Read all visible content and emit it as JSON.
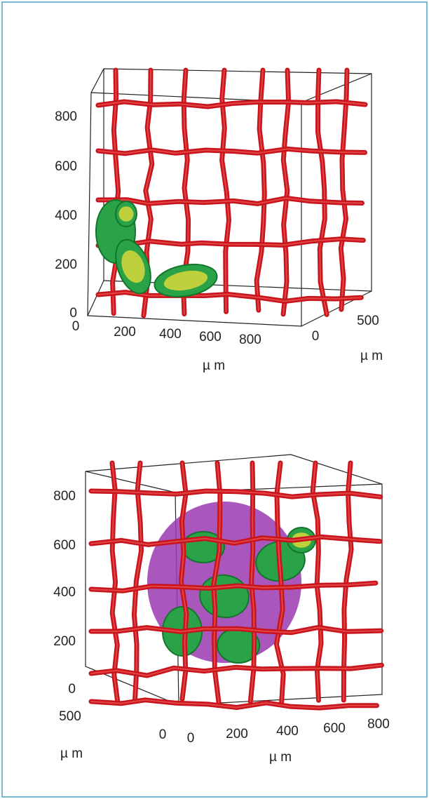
{
  "panels": [
    {
      "z_ticks": [
        "800",
        "600",
        "400",
        "200",
        "0"
      ],
      "x_ticks": [
        "0",
        "200",
        "400",
        "600",
        "800"
      ],
      "y_ticks": [
        "0",
        "500"
      ],
      "x_label": "µ m",
      "y_label": "µ m"
    },
    {
      "z_ticks": [
        "800",
        "600",
        "400",
        "200",
        "0"
      ],
      "x_ticks": [
        "0",
        "200",
        "400",
        "600",
        "800"
      ],
      "y_ticks": [
        "500",
        "0"
      ],
      "x_label": "µ m",
      "y_label": "µ m"
    }
  ]
}
